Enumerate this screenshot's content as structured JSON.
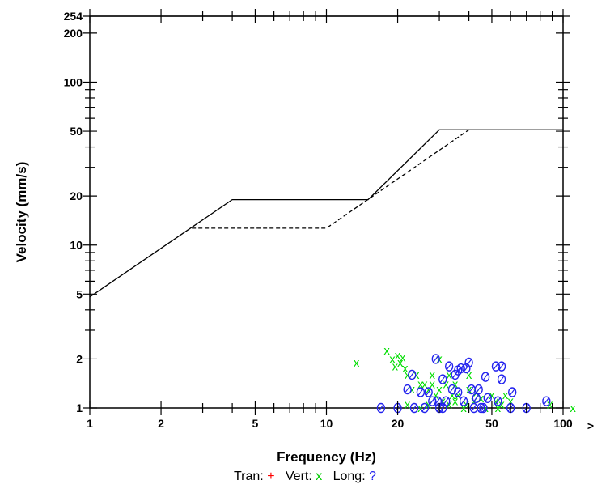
{
  "chart_data": {
    "type": "scatter",
    "xscale": "log",
    "yscale": "log",
    "xlim": [
      1,
      100
    ],
    "ylim": [
      1,
      254
    ],
    "xlabel": "Frequency (Hz)",
    "ylabel": "Velocity (mm/s)",
    "xticks": [
      1,
      2,
      5,
      10,
      20,
      50,
      100
    ],
    "xtick_labels": [
      "1",
      "2",
      "5",
      "10",
      "20",
      "50",
      "100"
    ],
    "yticks": [
      1,
      2,
      5,
      10,
      20,
      50,
      100,
      200,
      254
    ],
    "ytick_labels": [
      "1",
      "2",
      "5",
      "10",
      "20",
      "50",
      "100",
      "200",
      "254"
    ],
    "x_overflow_marker": ">",
    "limit_lines": [
      {
        "name": "upper-limit",
        "style": "solid",
        "points": [
          [
            1,
            4.8
          ],
          [
            4,
            19
          ],
          [
            15,
            19
          ],
          [
            30,
            51
          ],
          [
            100,
            51
          ]
        ]
      },
      {
        "name": "lower-limit",
        "style": "dashed",
        "points": [
          [
            2.7,
            12.7
          ],
          [
            10,
            12.7
          ],
          [
            40,
            51
          ]
        ]
      }
    ],
    "series": [
      {
        "name": "Tran",
        "symbol": "+",
        "color": "#ff0000",
        "points": []
      },
      {
        "name": "Vert",
        "symbol": "x",
        "color": "#00dd00",
        "points": [
          [
            13.4,
            1.9
          ],
          [
            18,
            2.25
          ],
          [
            19,
            2.0
          ],
          [
            19.5,
            1.8
          ],
          [
            20,
            2.1
          ],
          [
            20.5,
            1.9
          ],
          [
            21,
            2.05
          ],
          [
            21.5,
            1.75
          ],
          [
            22,
            1.6
          ],
          [
            23,
            1.3
          ],
          [
            24,
            1.6
          ],
          [
            25,
            1.4
          ],
          [
            26,
            1.4
          ],
          [
            27,
            1.3
          ],
          [
            28,
            1.4
          ],
          [
            28,
            1.6
          ],
          [
            29,
            1.2
          ],
          [
            30,
            2.0
          ],
          [
            30,
            1.3
          ],
          [
            31,
            1.1
          ],
          [
            32,
            1.4
          ],
          [
            33,
            1.6
          ],
          [
            34,
            1.2
          ],
          [
            35,
            1.1
          ],
          [
            35,
            1.4
          ],
          [
            36,
            1.2
          ],
          [
            38,
            1.0
          ],
          [
            40,
            1.6
          ],
          [
            42,
            1.1
          ],
          [
            43,
            1.25
          ],
          [
            45,
            1.15
          ],
          [
            50,
            1.2
          ],
          [
            52,
            1.1
          ],
          [
            55,
            1.05
          ],
          [
            57,
            1.2
          ],
          [
            60,
            1.1
          ],
          [
            88,
            1.05
          ],
          [
            110,
            1.0
          ],
          [
            22,
            1.05
          ],
          [
            25,
            1.0
          ],
          [
            27,
            1.05
          ],
          [
            33,
            1.05
          ],
          [
            39,
            1.05
          ],
          [
            47,
            1.0
          ],
          [
            53,
            1.0
          ],
          [
            40,
            1.3
          ]
        ]
      },
      {
        "name": "Long",
        "symbol": "o",
        "color": "#2222ee",
        "points": [
          [
            17,
            1.0
          ],
          [
            20,
            1.0
          ],
          [
            22,
            1.3
          ],
          [
            23,
            1.6
          ],
          [
            23.5,
            1.0
          ],
          [
            25,
            1.25
          ],
          [
            26,
            1.0
          ],
          [
            27,
            1.25
          ],
          [
            28,
            1.1
          ],
          [
            29,
            2.0
          ],
          [
            29.5,
            1.1
          ],
          [
            30,
            1.0
          ],
          [
            31,
            1.5
          ],
          [
            32,
            1.1
          ],
          [
            33,
            1.8
          ],
          [
            34,
            1.3
          ],
          [
            35,
            1.6
          ],
          [
            36,
            1.7
          ],
          [
            37,
            1.75
          ],
          [
            38,
            1.1
          ],
          [
            39,
            1.75
          ],
          [
            40,
            1.9
          ],
          [
            41,
            1.3
          ],
          [
            42,
            1.0
          ],
          [
            43,
            1.15
          ],
          [
            44,
            1.3
          ],
          [
            46,
            1.0
          ],
          [
            47,
            1.55
          ],
          [
            48,
            1.15
          ],
          [
            52,
            1.8
          ],
          [
            53,
            1.1
          ],
          [
            55,
            1.8
          ],
          [
            55,
            1.5
          ],
          [
            60,
            1.0
          ],
          [
            61,
            1.25
          ],
          [
            70,
            1.0
          ],
          [
            85,
            1.1
          ],
          [
            31,
            1.0
          ],
          [
            36,
            1.25
          ],
          [
            45,
            1.0
          ]
        ]
      }
    ],
    "legend": [
      {
        "label": "Tran:",
        "symbol": "+",
        "color": "#ff0000"
      },
      {
        "label": "Vert:",
        "symbol": "x",
        "color": "#00cc00"
      },
      {
        "label": "Long:",
        "symbol": "?",
        "color": "#2222ee"
      }
    ]
  }
}
